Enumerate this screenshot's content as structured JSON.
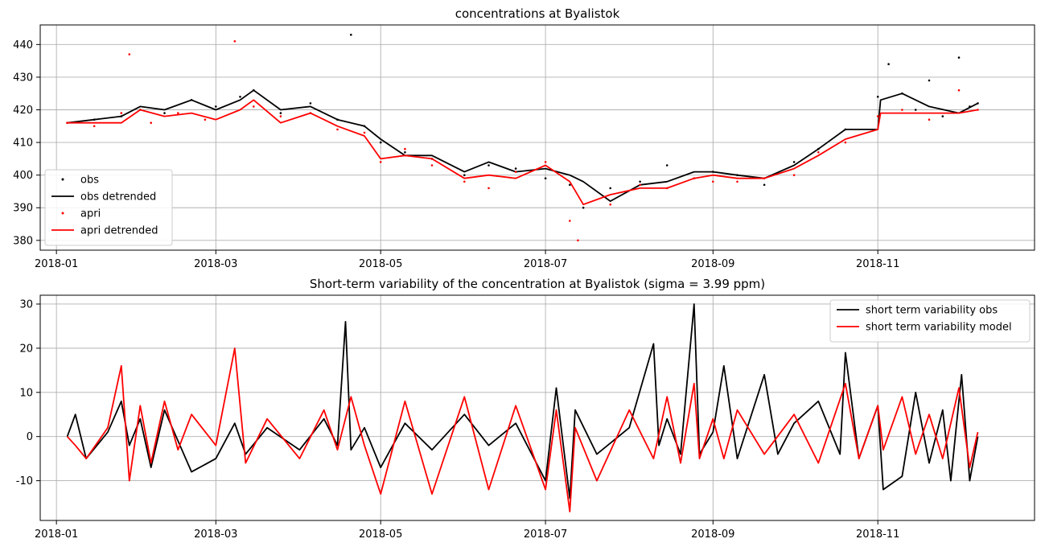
{
  "colors": {
    "obs": "#000000",
    "model": "#ff0000",
    "grid": "#b0b0b0",
    "background": "#ffffff"
  },
  "chart_data": [
    {
      "type": "line",
      "title": "concentrations at Byalistok",
      "xlabel": "",
      "ylabel": "",
      "x_ticks": [
        "2018-01",
        "2018-03",
        "2018-05",
        "2018-07",
        "2018-09",
        "2018-11"
      ],
      "x_tick_dates": [
        "2018-01-01",
        "2018-03-01",
        "2018-05-01",
        "2018-07-01",
        "2018-09-01",
        "2018-11-01"
      ],
      "xlim": [
        "2017-12-26",
        "2018-12-29"
      ],
      "y_ticks": [
        380,
        390,
        400,
        410,
        420,
        430,
        440
      ],
      "ylim": [
        377,
        446
      ],
      "grid": true,
      "legend_position": "lower-left",
      "series": [
        {
          "name": "obs",
          "style": "markers",
          "x": [
            "2018-01-05",
            "2018-01-15",
            "2018-01-25",
            "2018-02-01",
            "2018-02-10",
            "2018-02-20",
            "2018-03-01",
            "2018-03-10",
            "2018-03-15",
            "2018-03-25",
            "2018-04-05",
            "2018-04-15",
            "2018-04-20",
            "2018-04-25",
            "2018-05-01",
            "2018-05-10",
            "2018-05-20",
            "2018-06-01",
            "2018-06-10",
            "2018-06-20",
            "2018-07-01",
            "2018-07-10",
            "2018-07-15",
            "2018-07-25",
            "2018-08-05",
            "2018-08-15",
            "2018-08-25",
            "2018-09-01",
            "2018-09-10",
            "2018-09-20",
            "2018-10-01",
            "2018-10-10",
            "2018-10-20",
            "2018-11-01",
            "2018-11-05",
            "2018-11-10",
            "2018-11-15",
            "2018-11-20",
            "2018-11-25",
            "2018-12-01",
            "2018-12-05",
            "2018-12-08"
          ],
          "y": [
            416,
            417,
            418,
            420,
            419,
            423,
            421,
            424,
            426,
            419,
            422,
            417,
            443,
            415,
            410,
            407,
            405,
            400,
            403,
            402,
            399,
            397,
            390,
            396,
            398,
            403,
            399,
            401,
            400,
            397,
            404,
            408,
            414,
            424,
            434,
            425,
            420,
            429,
            418,
            436,
            421,
            422
          ]
        },
        {
          "name": "obs detrended",
          "style": "line",
          "x": [
            "2018-01-05",
            "2018-01-15",
            "2018-01-25",
            "2018-02-01",
            "2018-02-10",
            "2018-02-20",
            "2018-03-01",
            "2018-03-10",
            "2018-03-15",
            "2018-03-25",
            "2018-04-05",
            "2018-04-15",
            "2018-04-25",
            "2018-05-01",
            "2018-05-10",
            "2018-05-20",
            "2018-06-01",
            "2018-06-10",
            "2018-06-20",
            "2018-07-01",
            "2018-07-10",
            "2018-07-15",
            "2018-07-25",
            "2018-08-05",
            "2018-08-15",
            "2018-08-25",
            "2018-09-01",
            "2018-09-10",
            "2018-09-20",
            "2018-10-01",
            "2018-10-10",
            "2018-10-20",
            "2018-11-01",
            "2018-11-02",
            "2018-11-10",
            "2018-11-20",
            "2018-12-01",
            "2018-12-08"
          ],
          "y": [
            416,
            417,
            418,
            421,
            420,
            423,
            420,
            423,
            426,
            420,
            421,
            417,
            415,
            411,
            406,
            406,
            401,
            404,
            401,
            402,
            400,
            398,
            392,
            397,
            398,
            401,
            401,
            400,
            399,
            403,
            408,
            414,
            414,
            423,
            425,
            421,
            419,
            422
          ]
        },
        {
          "name": "apri",
          "style": "markers",
          "x": [
            "2018-01-05",
            "2018-01-15",
            "2018-01-25",
            "2018-01-28",
            "2018-02-05",
            "2018-02-15",
            "2018-02-25",
            "2018-03-08",
            "2018-03-15",
            "2018-03-25",
            "2018-04-05",
            "2018-04-15",
            "2018-04-25",
            "2018-05-01",
            "2018-05-10",
            "2018-05-20",
            "2018-06-01",
            "2018-06-10",
            "2018-06-20",
            "2018-07-01",
            "2018-07-10",
            "2018-07-13",
            "2018-07-25",
            "2018-08-05",
            "2018-08-15",
            "2018-08-25",
            "2018-09-01",
            "2018-09-10",
            "2018-09-20",
            "2018-10-01",
            "2018-10-10",
            "2018-10-20",
            "2018-11-01",
            "2018-11-10",
            "2018-11-20",
            "2018-12-01",
            "2018-12-08"
          ],
          "y": [
            416,
            415,
            419,
            437,
            416,
            419,
            417,
            441,
            421,
            418,
            419,
            414,
            413,
            404,
            408,
            403,
            398,
            396,
            401,
            404,
            386,
            380,
            391,
            397,
            396,
            399,
            398,
            398,
            399,
            400,
            407,
            410,
            418,
            420,
            417,
            426,
            420
          ]
        },
        {
          "name": "apri detrended",
          "style": "line",
          "x": [
            "2018-01-05",
            "2018-01-15",
            "2018-01-25",
            "2018-02-01",
            "2018-02-10",
            "2018-02-20",
            "2018-03-01",
            "2018-03-10",
            "2018-03-15",
            "2018-03-25",
            "2018-04-05",
            "2018-04-15",
            "2018-04-25",
            "2018-05-01",
            "2018-05-10",
            "2018-05-20",
            "2018-06-01",
            "2018-06-10",
            "2018-06-20",
            "2018-07-01",
            "2018-07-10",
            "2018-07-15",
            "2018-07-25",
            "2018-08-05",
            "2018-08-15",
            "2018-08-25",
            "2018-09-01",
            "2018-09-10",
            "2018-09-20",
            "2018-10-01",
            "2018-10-10",
            "2018-10-20",
            "2018-11-01",
            "2018-11-02",
            "2018-11-10",
            "2018-11-20",
            "2018-12-01",
            "2018-12-08"
          ],
          "y": [
            416,
            416,
            416,
            420,
            418,
            419,
            417,
            420,
            423,
            416,
            419,
            415,
            412,
            405,
            406,
            405,
            399,
            400,
            399,
            403,
            398,
            391,
            394,
            396,
            396,
            399,
            400,
            399,
            399,
            402,
            406,
            411,
            414,
            419,
            419,
            419,
            419,
            420
          ]
        }
      ]
    },
    {
      "type": "line",
      "title": "Short-term variability of the concentration at Byalistok (sigma = 3.99 ppm)",
      "xlabel": "",
      "ylabel": "",
      "x_ticks": [
        "2018-01",
        "2018-03",
        "2018-05",
        "2018-07",
        "2018-09",
        "2018-11"
      ],
      "x_tick_dates": [
        "2018-01-01",
        "2018-03-01",
        "2018-05-01",
        "2018-07-01",
        "2018-09-01",
        "2018-11-01"
      ],
      "xlim": [
        "2017-12-26",
        "2018-12-29"
      ],
      "y_ticks": [
        -10,
        0,
        10,
        20,
        30
      ],
      "ylim": [
        -19,
        32
      ],
      "grid": true,
      "legend_position": "upper-right",
      "series": [
        {
          "name": "short term variability obs",
          "style": "line",
          "x": [
            "2018-01-05",
            "2018-01-08",
            "2018-01-12",
            "2018-01-20",
            "2018-01-25",
            "2018-01-28",
            "2018-02-01",
            "2018-02-05",
            "2018-02-10",
            "2018-02-15",
            "2018-02-20",
            "2018-03-01",
            "2018-03-08",
            "2018-03-12",
            "2018-03-20",
            "2018-04-01",
            "2018-04-10",
            "2018-04-15",
            "2018-04-18",
            "2018-04-20",
            "2018-04-25",
            "2018-05-01",
            "2018-05-10",
            "2018-05-20",
            "2018-06-01",
            "2018-06-10",
            "2018-06-20",
            "2018-07-01",
            "2018-07-05",
            "2018-07-10",
            "2018-07-12",
            "2018-07-20",
            "2018-08-01",
            "2018-08-10",
            "2018-08-12",
            "2018-08-15",
            "2018-08-20",
            "2018-08-25",
            "2018-08-27",
            "2018-09-01",
            "2018-09-05",
            "2018-09-10",
            "2018-09-20",
            "2018-09-25",
            "2018-10-01",
            "2018-10-10",
            "2018-10-18",
            "2018-10-20",
            "2018-10-25",
            "2018-11-01",
            "2018-11-03",
            "2018-11-10",
            "2018-11-15",
            "2018-11-20",
            "2018-11-25",
            "2018-11-28",
            "2018-12-02",
            "2018-12-05",
            "2018-12-08"
          ],
          "y": [
            0,
            5,
            -5,
            1,
            8,
            -2,
            4,
            -7,
            6,
            -1,
            -8,
            -5,
            3,
            -4,
            2,
            -3,
            4,
            -2,
            26,
            -3,
            2,
            -7,
            3,
            -3,
            5,
            -2,
            3,
            -10,
            11,
            -14,
            6,
            -4,
            2,
            21,
            -2,
            4,
            -4,
            30,
            -4,
            1,
            16,
            -5,
            14,
            -4,
            3,
            8,
            -4,
            19,
            -5,
            7,
            -12,
            -9,
            10,
            -6,
            6,
            -10,
            14,
            -10,
            0
          ]
        },
        {
          "name": "short term variability model",
          "style": "line",
          "x": [
            "2018-01-05",
            "2018-01-08",
            "2018-01-12",
            "2018-01-20",
            "2018-01-25",
            "2018-01-28",
            "2018-02-01",
            "2018-02-05",
            "2018-02-10",
            "2018-02-15",
            "2018-02-20",
            "2018-03-01",
            "2018-03-08",
            "2018-03-12",
            "2018-03-20",
            "2018-04-01",
            "2018-04-10",
            "2018-04-15",
            "2018-04-20",
            "2018-04-25",
            "2018-05-01",
            "2018-05-10",
            "2018-05-20",
            "2018-06-01",
            "2018-06-10",
            "2018-06-20",
            "2018-07-01",
            "2018-07-05",
            "2018-07-10",
            "2018-07-12",
            "2018-07-20",
            "2018-08-01",
            "2018-08-10",
            "2018-08-15",
            "2018-08-20",
            "2018-08-25",
            "2018-08-27",
            "2018-09-01",
            "2018-09-05",
            "2018-09-10",
            "2018-09-20",
            "2018-10-01",
            "2018-10-10",
            "2018-10-20",
            "2018-10-25",
            "2018-11-01",
            "2018-11-03",
            "2018-11-10",
            "2018-11-15",
            "2018-11-20",
            "2018-11-25",
            "2018-12-01",
            "2018-12-05",
            "2018-12-08"
          ],
          "y": [
            0,
            -2,
            -5,
            2,
            16,
            -10,
            7,
            -6,
            8,
            -3,
            5,
            -2,
            20,
            -6,
            4,
            -5,
            6,
            -3,
            9,
            -2,
            -13,
            8,
            -13,
            9,
            -12,
            7,
            -12,
            6,
            -17,
            2,
            -10,
            6,
            -5,
            9,
            -6,
            12,
            -5,
            4,
            -5,
            6,
            -4,
            5,
            -6,
            12,
            -5,
            7,
            -3,
            9,
            -4,
            5,
            -5,
            11,
            -7,
            1
          ]
        }
      ]
    }
  ]
}
